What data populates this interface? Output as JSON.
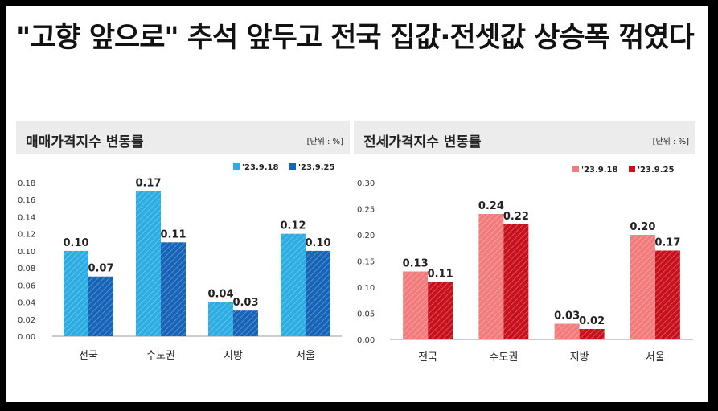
{
  "headline": "\"고향 앞으로\" 추석 앞두고 전국 집값·전셋값 상승폭 꺾였다",
  "chart_data": [
    {
      "type": "bar",
      "title": "매매가격지수 변동률",
      "unit": "[단위 : %]",
      "categories": [
        "전국",
        "수도권",
        "지방",
        "서울"
      ],
      "series": [
        {
          "name": "'23.9.18",
          "values": [
            0.1,
            0.17,
            0.04,
            0.12
          ],
          "color": "#2bace2",
          "label_texts": [
            "0.10",
            "0.17",
            "0.04",
            "0.12"
          ]
        },
        {
          "name": "'23.9.25",
          "values": [
            0.07,
            0.11,
            0.03,
            0.1
          ],
          "color": "#1664b8",
          "label_texts": [
            "0.07",
            "0.11",
            "0.03",
            "0.10"
          ]
        }
      ],
      "ylim": [
        0,
        0.18
      ],
      "yticks": [
        "0.00",
        "0.02",
        "0.04",
        "0.06",
        "0.08",
        "0.10",
        "0.12",
        "0.14",
        "0.16",
        "0.18"
      ],
      "legend": "top-right"
    },
    {
      "type": "bar",
      "title": "전세가격지수 변동률",
      "unit": "[단위 : %]",
      "categories": [
        "전국",
        "수도권",
        "지방",
        "서울"
      ],
      "series": [
        {
          "name": "'23.9.18",
          "values": [
            0.13,
            0.24,
            0.03,
            0.2
          ],
          "color": "#f27b7b",
          "label_texts": [
            "0.13",
            "0.24",
            "0.03",
            "0.20"
          ]
        },
        {
          "name": "'23.9.25",
          "values": [
            0.11,
            0.22,
            0.02,
            0.17
          ],
          "color": "#c8101d",
          "label_texts": [
            "0.11",
            "0.22",
            "0.02",
            "0.17"
          ]
        }
      ],
      "ylim": [
        0,
        0.3
      ],
      "yticks": [
        "0.00",
        "0.05",
        "0.10",
        "0.15",
        "0.20",
        "0.25",
        "0.30"
      ],
      "legend": "top-right"
    }
  ]
}
